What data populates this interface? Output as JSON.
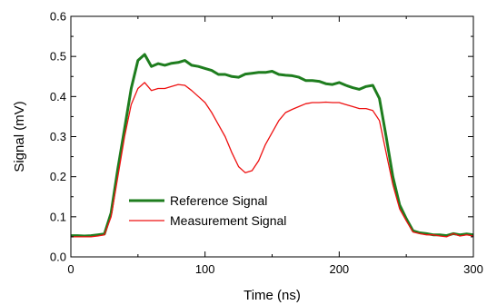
{
  "chart_data": {
    "type": "line",
    "xlabel": "Time (ns)",
    "ylabel": "Signal (mV)",
    "xlim": [
      0,
      300
    ],
    "ylim": [
      0.0,
      0.6
    ],
    "xticks": [
      0,
      100,
      200,
      300
    ],
    "xtick_labels": [
      "0",
      "100",
      "200",
      "300"
    ],
    "yticks": [
      0.0,
      0.1,
      0.2,
      0.3,
      0.4,
      0.5,
      0.6
    ],
    "ytick_labels": [
      "0.0",
      "0.1",
      "0.2",
      "0.3",
      "0.4",
      "0.5",
      "0.6"
    ],
    "grid": false,
    "legend_position": "lower-left",
    "series": [
      {
        "name": "Reference Signal",
        "color": "#1e7d1e",
        "x": [
          0,
          5,
          10,
          15,
          20,
          25,
          30,
          35,
          40,
          45,
          50,
          55,
          60,
          65,
          70,
          75,
          80,
          85,
          90,
          95,
          100,
          105,
          110,
          115,
          120,
          125,
          130,
          135,
          140,
          145,
          150,
          155,
          160,
          165,
          170,
          175,
          180,
          185,
          190,
          195,
          200,
          205,
          210,
          215,
          220,
          225,
          230,
          235,
          240,
          245,
          250,
          255,
          260,
          265,
          270,
          275,
          280,
          285,
          290,
          295,
          300
        ],
        "y": [
          0.053,
          0.053,
          0.052,
          0.053,
          0.055,
          0.057,
          0.11,
          0.22,
          0.32,
          0.42,
          0.49,
          0.505,
          0.475,
          0.482,
          0.478,
          0.483,
          0.485,
          0.49,
          0.478,
          0.475,
          0.47,
          0.465,
          0.455,
          0.455,
          0.45,
          0.448,
          0.456,
          0.458,
          0.46,
          0.46,
          0.463,
          0.455,
          0.453,
          0.452,
          0.448,
          0.44,
          0.44,
          0.438,
          0.432,
          0.43,
          0.435,
          0.428,
          0.422,
          0.418,
          0.425,
          0.428,
          0.395,
          0.3,
          0.2,
          0.13,
          0.095,
          0.065,
          0.06,
          0.058,
          0.055,
          0.055,
          0.053,
          0.058,
          0.055,
          0.057,
          0.055
        ]
      },
      {
        "name": "Measurement Signal",
        "color": "#ee1111",
        "x": [
          0,
          5,
          10,
          15,
          20,
          25,
          30,
          35,
          40,
          45,
          50,
          55,
          60,
          65,
          70,
          75,
          80,
          85,
          90,
          95,
          100,
          105,
          110,
          115,
          120,
          125,
          130,
          135,
          140,
          145,
          150,
          155,
          160,
          165,
          170,
          175,
          180,
          185,
          190,
          195,
          200,
          205,
          210,
          215,
          220,
          225,
          230,
          235,
          240,
          245,
          250,
          255,
          260,
          265,
          270,
          275,
          280,
          285,
          290,
          295,
          300
        ],
        "y": [
          0.05,
          0.05,
          0.05,
          0.05,
          0.052,
          0.055,
          0.1,
          0.2,
          0.3,
          0.38,
          0.42,
          0.435,
          0.415,
          0.42,
          0.42,
          0.425,
          0.43,
          0.428,
          0.415,
          0.4,
          0.385,
          0.36,
          0.33,
          0.3,
          0.26,
          0.225,
          0.21,
          0.215,
          0.24,
          0.28,
          0.31,
          0.34,
          0.36,
          0.368,
          0.375,
          0.382,
          0.385,
          0.385,
          0.386,
          0.385,
          0.385,
          0.38,
          0.375,
          0.37,
          0.37,
          0.365,
          0.34,
          0.26,
          0.18,
          0.12,
          0.09,
          0.062,
          0.058,
          0.055,
          0.055,
          0.052,
          0.05,
          0.058,
          0.052,
          0.055,
          0.052
        ]
      }
    ]
  }
}
